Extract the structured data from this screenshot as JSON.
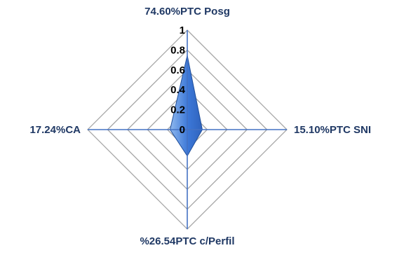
{
  "chart_data": {
    "type": "radar",
    "axes": [
      "74.60%PTC Posg",
      "15.10%PTC SNI",
      "%26.54PTC c/Perfil",
      "17.24%CA"
    ],
    "values": [
      0.746,
      0.151,
      0.2654,
      0.1724
    ],
    "r_range": [
      0,
      1
    ],
    "ticks": [
      "0",
      "0.2",
      "0.4",
      "0.6",
      "0.8",
      "1"
    ],
    "grid": true,
    "colors": {
      "fill": "#3c78d8",
      "fill_light": "#a8c8f0",
      "grid": "#a6a6a6",
      "axis": "#4472c4",
      "label": "#1f3864"
    }
  }
}
